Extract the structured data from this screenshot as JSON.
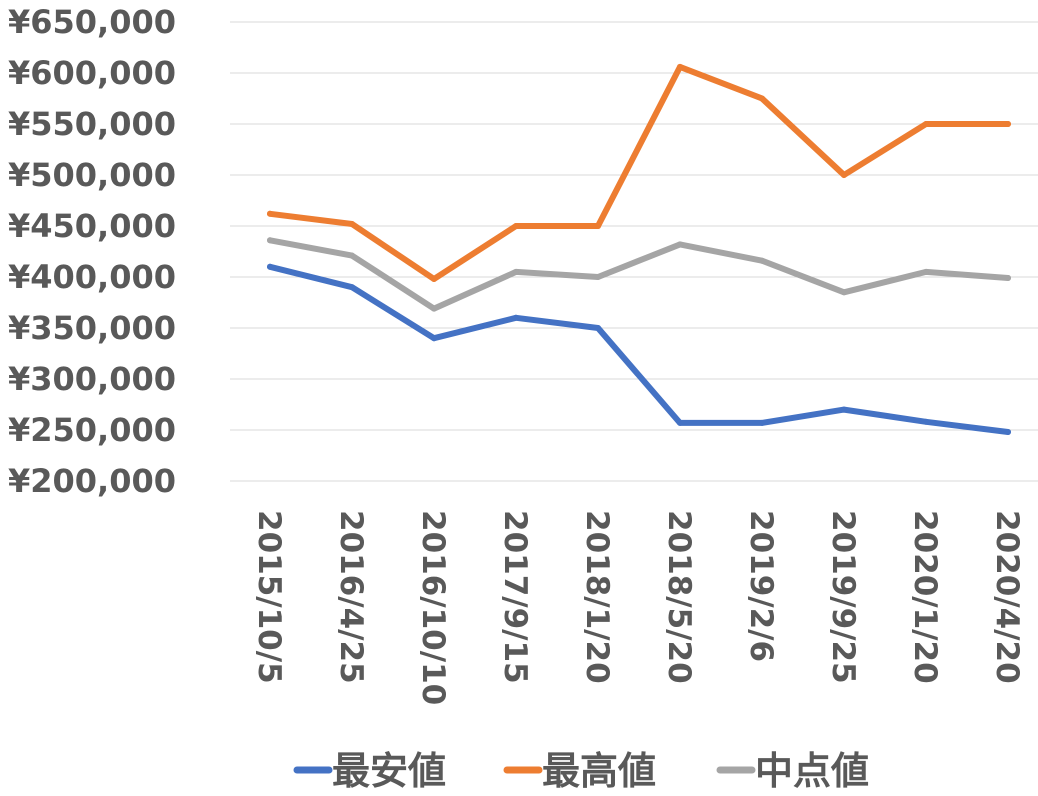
{
  "chart_data": {
    "type": "line",
    "title": "",
    "xlabel": "",
    "ylabel": "",
    "categories": [
      "2015/10/5",
      "2016/4/25",
      "2016/10/10",
      "2017/9/15",
      "2018/1/20",
      "2018/5/20",
      "2019/2/6",
      "2019/9/25",
      "2020/1/20",
      "2020/4/20"
    ],
    "ylim": [
      200000,
      650000
    ],
    "yticks": [
      {
        "value": 650000,
        "label": "¥650,000"
      },
      {
        "value": 600000,
        "label": "¥600,000"
      },
      {
        "value": 550000,
        "label": "¥550,000"
      },
      {
        "value": 500000,
        "label": "¥500,000"
      },
      {
        "value": 450000,
        "label": "¥450,000"
      },
      {
        "value": 400000,
        "label": "¥400,000"
      },
      {
        "value": 350000,
        "label": "¥350,000"
      },
      {
        "value": 300000,
        "label": "¥300,000"
      },
      {
        "value": 250000,
        "label": "¥250,000"
      },
      {
        "value": 200000,
        "label": "¥200,000"
      }
    ],
    "grid": true,
    "legend_position": "bottom",
    "series": [
      {
        "name": "最安値",
        "color": "#4472C4",
        "values": [
          410000,
          390000,
          340000,
          360000,
          350000,
          257000,
          257000,
          270000,
          258000,
          248000
        ]
      },
      {
        "name": "最高値",
        "color": "#ED7D31",
        "values": [
          462000,
          452000,
          398000,
          450000,
          450000,
          606000,
          575000,
          500000,
          550000,
          550000
        ]
      },
      {
        "name": "中点値",
        "color": "#A5A5A5",
        "values": [
          436000,
          421000,
          369000,
          405000,
          400000,
          432000,
          416000,
          385000,
          405000,
          399000
        ]
      }
    ]
  }
}
